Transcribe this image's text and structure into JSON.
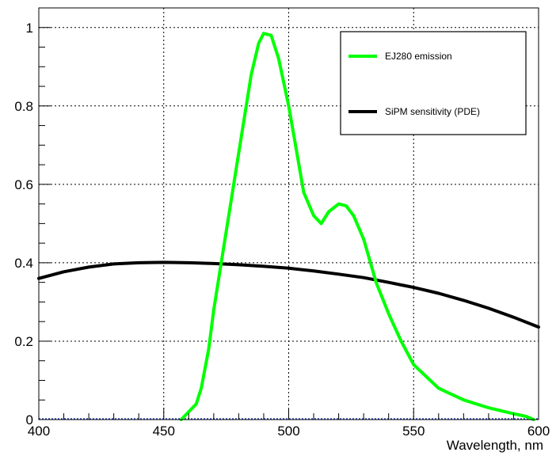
{
  "chart_data": {
    "type": "line",
    "title": "",
    "xlabel": "Wavelength, nm",
    "ylabel": "",
    "xlim": [
      400,
      600
    ],
    "ylim": [
      0,
      1.05
    ],
    "grid": true,
    "legend_position": "top-right",
    "x_ticks": [
      400,
      450,
      500,
      550,
      600
    ],
    "y_ticks": [
      0,
      0.2,
      0.4,
      0.6,
      0.8,
      1
    ],
    "x_tick_labels": [
      "400",
      "450",
      "500",
      "550",
      "600"
    ],
    "y_tick_labels": [
      "0",
      "0.2",
      "0.4",
      "0.6",
      "0.8",
      "1"
    ],
    "series": [
      {
        "name": "EJ280 emission",
        "color": "#00ff00",
        "x": [
          457,
          460,
          463,
          465,
          468,
          470,
          473,
          476,
          480,
          485,
          488,
          490,
          493,
          496,
          500,
          503,
          506,
          510,
          513,
          516,
          520,
          523,
          526,
          530,
          535,
          540,
          545,
          550,
          555,
          560,
          570,
          580,
          590,
          595,
          598
        ],
        "y": [
          0.0,
          0.02,
          0.04,
          0.08,
          0.18,
          0.28,
          0.4,
          0.52,
          0.68,
          0.88,
          0.96,
          0.985,
          0.98,
          0.92,
          0.8,
          0.69,
          0.58,
          0.52,
          0.5,
          0.53,
          0.55,
          0.545,
          0.52,
          0.46,
          0.35,
          0.27,
          0.2,
          0.14,
          0.11,
          0.08,
          0.05,
          0.03,
          0.015,
          0.008,
          0.0
        ]
      },
      {
        "name": "SiPM sensitivity (PDE)",
        "color": "#000000",
        "x": [
          400,
          410,
          420,
          430,
          440,
          450,
          460,
          470,
          480,
          490,
          500,
          510,
          520,
          530,
          540,
          550,
          560,
          570,
          580,
          590,
          600
        ],
        "y": [
          0.36,
          0.377,
          0.389,
          0.397,
          0.4,
          0.401,
          0.4,
          0.398,
          0.395,
          0.391,
          0.386,
          0.379,
          0.371,
          0.362,
          0.35,
          0.337,
          0.322,
          0.304,
          0.284,
          0.261,
          0.236
        ]
      }
    ]
  }
}
